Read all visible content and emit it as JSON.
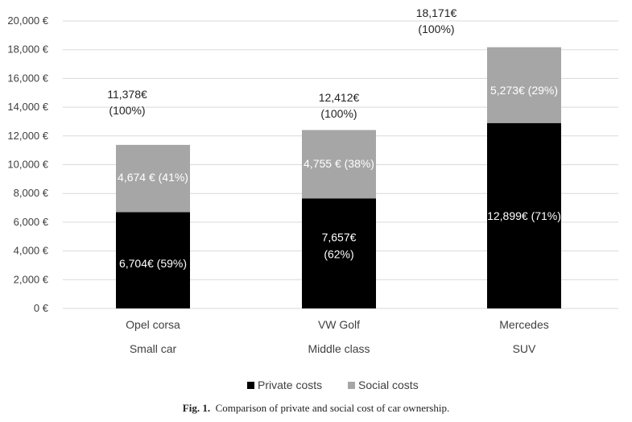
{
  "chart_data": {
    "type": "bar",
    "stacked": true,
    "categories": [
      "Opel corsa",
      "VW Golf",
      "Mercedes"
    ],
    "subcategories": [
      "Small car",
      "Middle class",
      "SUV"
    ],
    "series": [
      {
        "name": "Private costs",
        "color": "#000000",
        "values": [
          6704,
          7657,
          12899
        ],
        "labels": [
          "6,704€ (59%)",
          "7,657€\n(62%)",
          "12,899€ (71%)"
        ]
      },
      {
        "name": "Social costs",
        "color": "#a6a6a6",
        "values": [
          4674,
          4755,
          5273
        ],
        "labels": [
          "4,674 € (41%)",
          "4,755 € (38%)",
          "5,273€ (29%)"
        ]
      }
    ],
    "totals": [
      11378,
      12412,
      18171
    ],
    "total_labels": [
      "11,378€\n(100%)",
      "12,412€\n(100%)",
      "18,171€\n(100%)"
    ],
    "ylim": [
      0,
      20000
    ],
    "yticks": [
      0,
      2000,
      4000,
      6000,
      8000,
      10000,
      12000,
      14000,
      16000,
      18000,
      20000
    ],
    "ytick_labels": [
      "0 €",
      "2,000 €",
      "4,000 €",
      "6,000 €",
      "8,000 €",
      "10,000 €",
      "12,000 €",
      "14,000 €",
      "16,000 €",
      "18,000 €",
      "20,000 €"
    ],
    "grid": true,
    "legend_position": "bottom"
  },
  "caption": {
    "prefix": "Fig. 1.",
    "text": "Comparison of private and social cost of car ownership."
  }
}
